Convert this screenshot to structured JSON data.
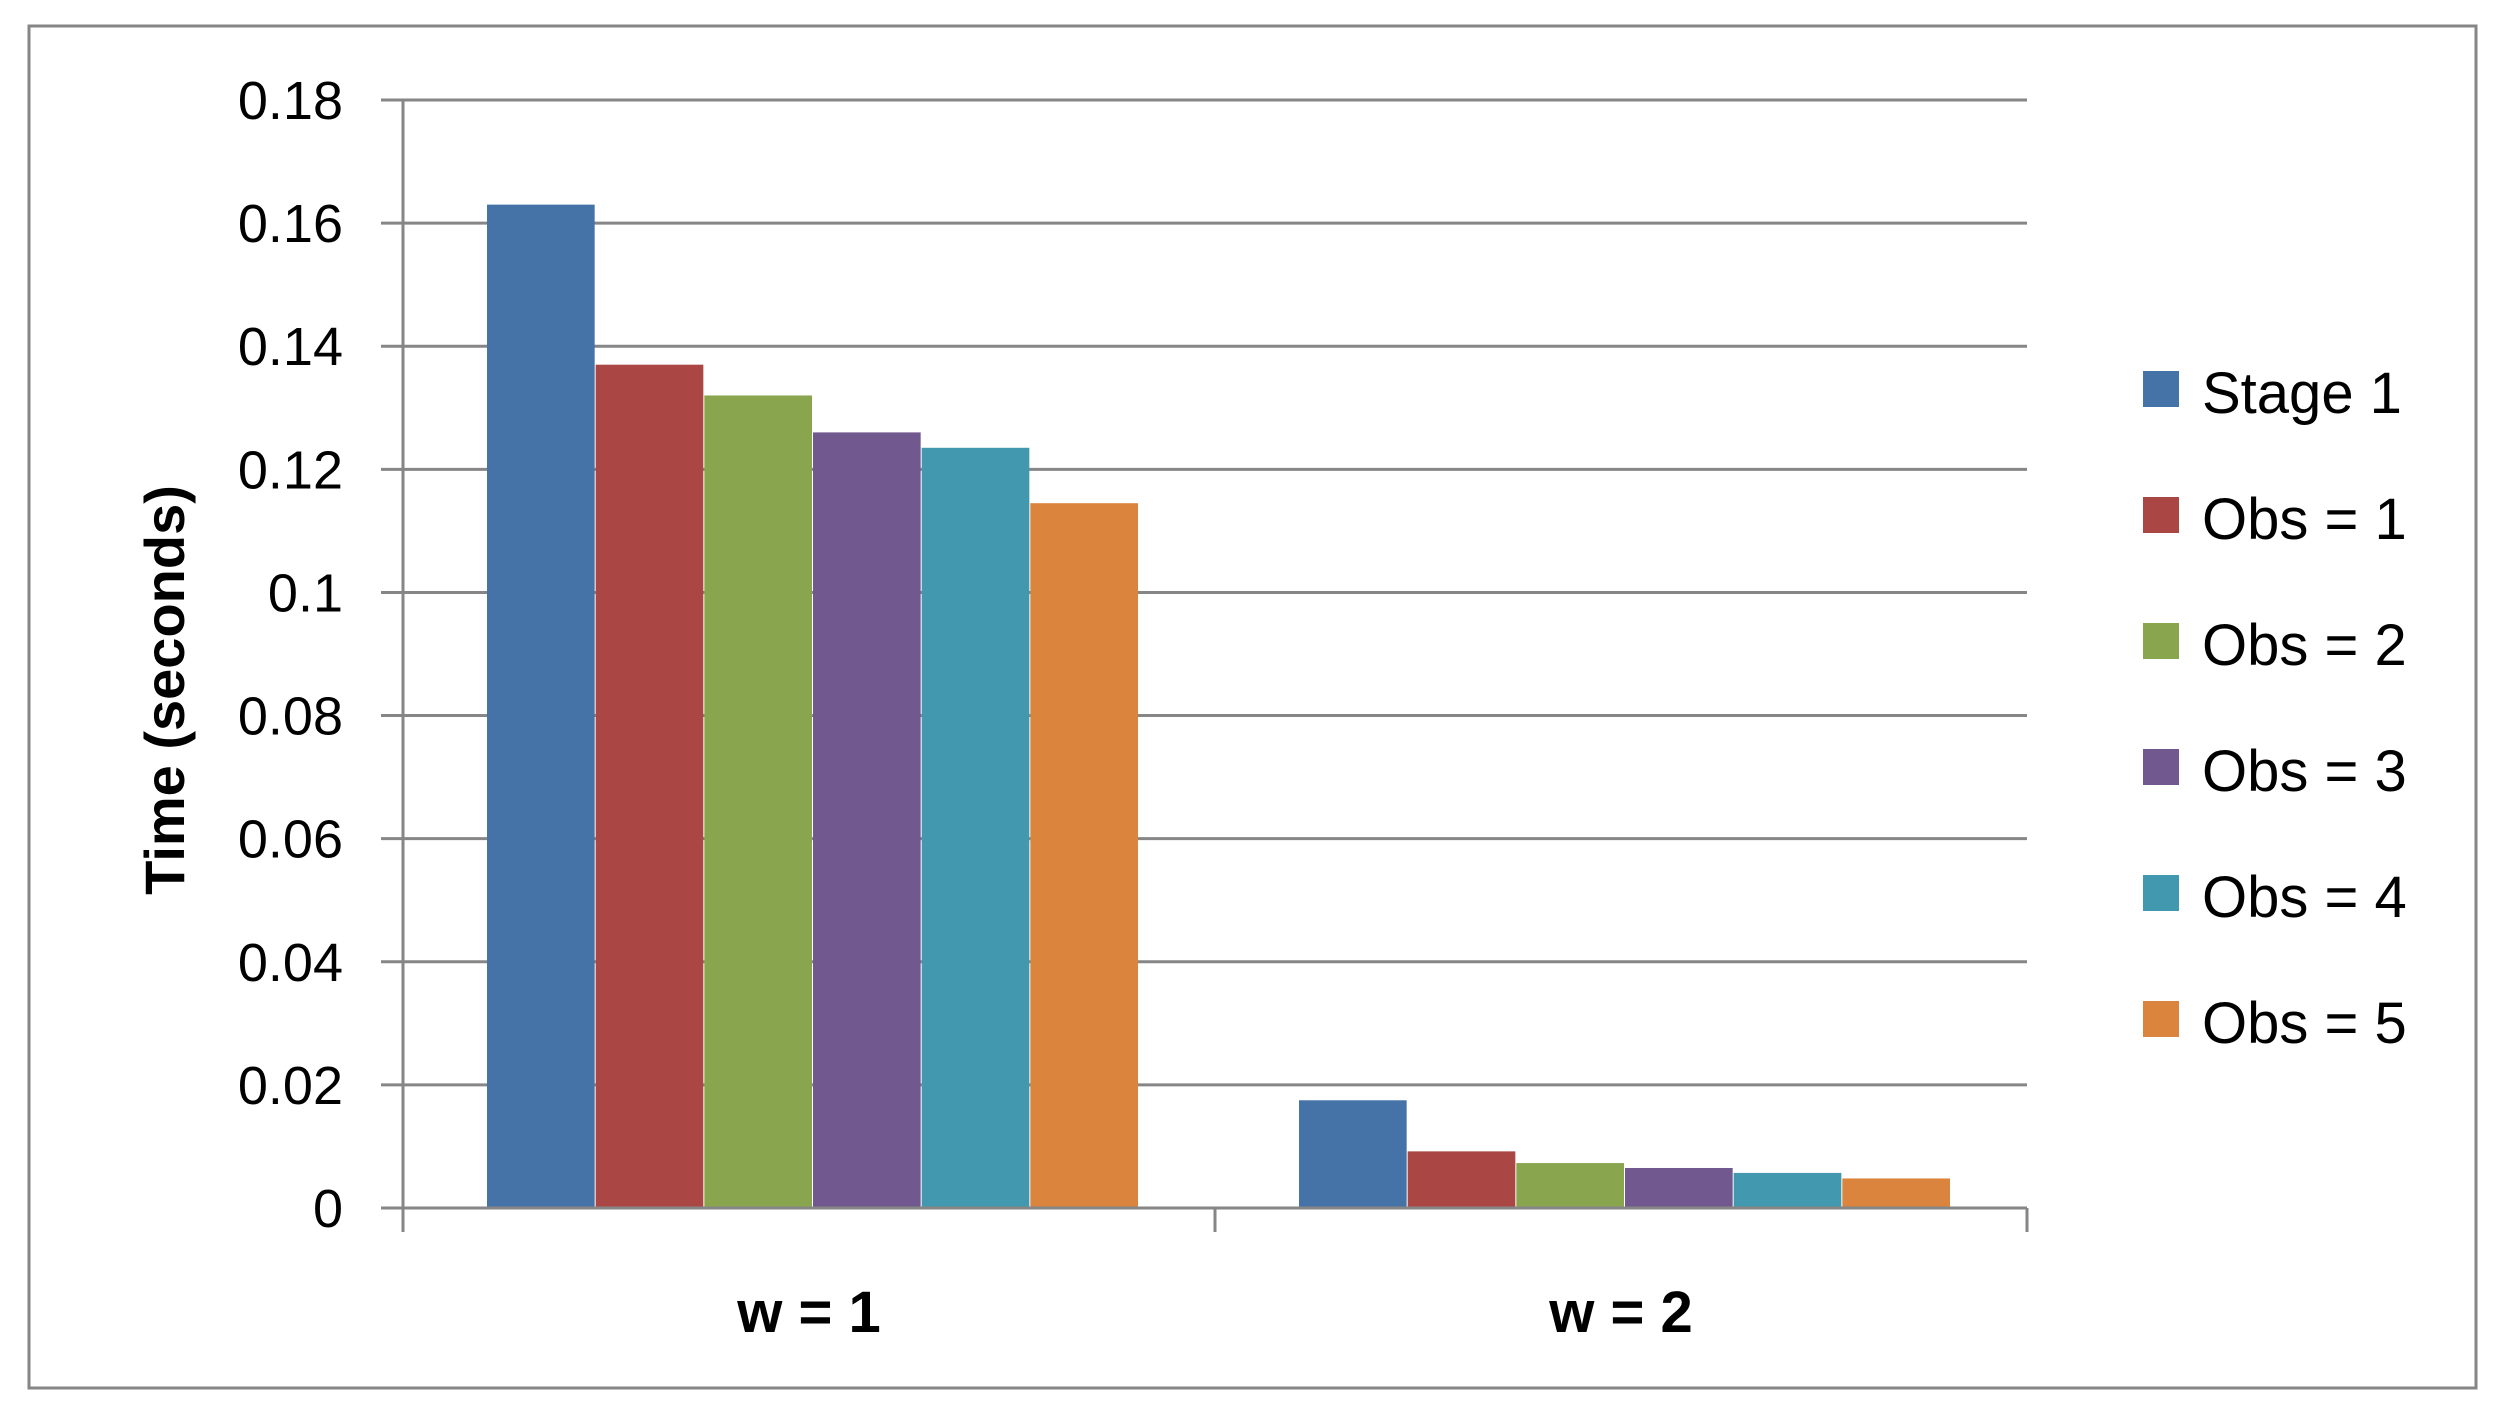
{
  "chart_data": {
    "type": "bar",
    "title": "",
    "xlabel": "",
    "ylabel": "Time (seconds)",
    "ylim": [
      0,
      0.18
    ],
    "yticks": [
      "0",
      "0.02",
      "0.04",
      "0.06",
      "0.08",
      "0.1",
      "0.12",
      "0.14",
      "0.16",
      "0.18"
    ],
    "grid": true,
    "legend_position": "right",
    "categories": [
      "w = 1",
      "w = 2"
    ],
    "series": [
      {
        "name": "Stage 1",
        "color": "#4572A7",
        "values": [
          0.163,
          0.0175
        ]
      },
      {
        "name": "Obs = 1",
        "color": "#AA4643",
        "values": [
          0.137,
          0.0092
        ]
      },
      {
        "name": "Obs = 2",
        "color": "#89A54E",
        "values": [
          0.132,
          0.0073
        ]
      },
      {
        "name": "Obs = 3",
        "color": "#71588F",
        "values": [
          0.126,
          0.0065
        ]
      },
      {
        "name": "Obs = 4",
        "color": "#4198AF",
        "values": [
          0.1235,
          0.0057
        ]
      },
      {
        "name": "Obs = 5",
        "color": "#DB843D",
        "values": [
          0.1145,
          0.0048
        ]
      }
    ]
  }
}
